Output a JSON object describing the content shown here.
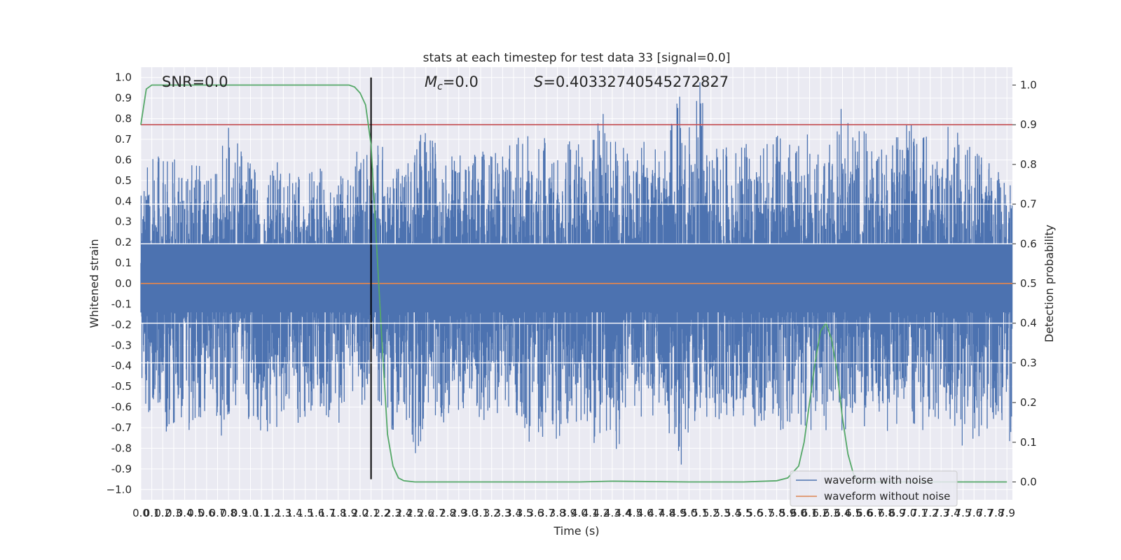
{
  "chart_data": {
    "type": "line",
    "title": "stats at each timestep for test data 33 [signal=0.0]",
    "xlabel": "Time (s)",
    "ylabel": "Whitened strain",
    "y2label": "Detection probability",
    "xlim": [
      0.0,
      7.95
    ],
    "ylim": [
      -1.05,
      1.05
    ],
    "y2lim": [
      -0.045,
      1.045
    ],
    "x_ticks": [
      0.0,
      0.1,
      0.2,
      0.3,
      0.4,
      0.5,
      0.6,
      0.7,
      0.8,
      0.9,
      1.0,
      1.1,
      1.2,
      1.3,
      1.4,
      1.5,
      1.6,
      1.7,
      1.8,
      1.9,
      2.0,
      2.1,
      2.2,
      2.3,
      2.4,
      2.5,
      2.6,
      2.7,
      2.8,
      2.9,
      3.0,
      3.1,
      3.2,
      3.3,
      3.4,
      3.5,
      3.6,
      3.7,
      3.8,
      3.9,
      4.0,
      4.1,
      4.2,
      4.3,
      4.4,
      4.5,
      4.6,
      4.7,
      4.8,
      4.9,
      5.0,
      5.1,
      5.2,
      5.3,
      5.4,
      5.5,
      5.6,
      5.7,
      5.8,
      5.9,
      6.0,
      6.1,
      6.2,
      6.3,
      6.4,
      6.5,
      6.6,
      6.7,
      6.8,
      6.9,
      7.0,
      7.1,
      7.2,
      7.3,
      7.4,
      7.5,
      7.6,
      7.7,
      7.8,
      7.9
    ],
    "y_ticks": [
      1.0,
      0.9,
      0.8,
      0.7,
      0.6,
      0.5,
      0.4,
      0.3,
      0.2,
      0.1,
      0.0,
      -0.1,
      -0.2,
      -0.3,
      -0.4,
      -0.5,
      -0.6,
      -0.7,
      -0.8,
      -0.9,
      -1.0
    ],
    "y_tick_labels": [
      "1.0",
      "0.9",
      "0.8",
      "0.7",
      "0.6",
      "0.5",
      "0.4",
      "0.3",
      "0.2",
      "0.1",
      "0.0",
      "-0.1",
      "-0.2",
      "-0.3",
      "-0.4",
      "-0.5",
      "-0.6",
      "-0.7",
      "-0.8",
      "-0.9",
      "−1.0"
    ],
    "y2_ticks": [
      0.0,
      0.1,
      0.2,
      0.3,
      0.4,
      0.5,
      0.6,
      0.7,
      0.8,
      0.9,
      1.0
    ],
    "y2_grid": [
      0.3,
      0.4,
      0.6,
      0.7
    ],
    "annotations": {
      "snr": "SNR=0.0",
      "mc_symbol": "M",
      "mc_sub": "c",
      "mc_value": "=0.0",
      "s_symbol": "S",
      "s_value": "=0.40332740545272827"
    },
    "threshold": {
      "value": 0.9,
      "axis": "y2"
    },
    "marker_time": 2.1,
    "series": [
      {
        "name": "waveform with noise",
        "color": "#4c72b0",
        "axis": "y",
        "profile_time": [
          0.0,
          0.1,
          0.2,
          0.3,
          0.4,
          0.5,
          0.6,
          0.7,
          0.8,
          0.9,
          1.0,
          1.1,
          1.2,
          1.3,
          1.4,
          1.5,
          1.6,
          1.7,
          1.8,
          1.9,
          2.0,
          2.1,
          2.2,
          2.3,
          2.4,
          2.5,
          2.6,
          2.7,
          2.8,
          2.9,
          3.0,
          3.1,
          3.2,
          3.3,
          3.4,
          3.5,
          3.6,
          3.7,
          3.8,
          3.9,
          4.0,
          4.1,
          4.2,
          4.3,
          4.4,
          4.5,
          4.6,
          4.7,
          4.8,
          4.9,
          5.0,
          5.1,
          5.2,
          5.3,
          5.4,
          5.5,
          5.6,
          5.7,
          5.8,
          5.9,
          6.0,
          6.1,
          6.2,
          6.3,
          6.4,
          6.5,
          6.6,
          6.7,
          6.8,
          6.9,
          7.0,
          7.1,
          7.2,
          7.3,
          7.4,
          7.5,
          7.6,
          7.7,
          7.8,
          7.9
        ],
        "upper": [
          0.48,
          0.62,
          0.68,
          0.65,
          0.5,
          0.68,
          0.52,
          0.55,
          0.9,
          0.65,
          0.74,
          0.3,
          0.6,
          0.58,
          0.52,
          0.6,
          0.58,
          0.52,
          0.56,
          0.55,
          0.68,
          0.62,
          0.7,
          0.55,
          0.62,
          0.65,
          0.8,
          0.68,
          0.72,
          0.62,
          0.7,
          0.66,
          0.62,
          0.68,
          0.7,
          0.78,
          0.64,
          0.72,
          0.62,
          0.7,
          0.68,
          0.66,
          0.92,
          0.65,
          0.82,
          0.6,
          0.7,
          0.65,
          0.7,
          0.99,
          0.76,
          0.99,
          0.62,
          0.72,
          0.65,
          0.7,
          0.6,
          0.72,
          0.88,
          0.66,
          0.92,
          0.68,
          0.62,
          0.8,
          0.86,
          0.72,
          0.8,
          0.65,
          0.7,
          0.72,
          0.83,
          0.7,
          0.78,
          0.7,
          0.82,
          0.66,
          0.7,
          0.66,
          0.62,
          0.5
        ],
        "lower": [
          -0.64,
          -0.62,
          -0.74,
          -0.7,
          -0.74,
          -0.72,
          -0.66,
          -0.72,
          -0.78,
          -0.58,
          -0.68,
          -0.72,
          -0.78,
          -0.62,
          -0.72,
          -0.66,
          -0.62,
          -0.66,
          -0.7,
          -0.54,
          -0.68,
          -0.56,
          -0.6,
          -0.72,
          -0.66,
          -0.84,
          -0.7,
          -0.66,
          -0.7,
          -0.62,
          -0.66,
          -0.7,
          -0.62,
          -0.7,
          -0.66,
          -0.72,
          -0.84,
          -0.72,
          -0.8,
          -0.72,
          -0.68,
          -0.75,
          -0.86,
          -0.93,
          -0.7,
          -0.66,
          -0.7,
          -0.62,
          -0.68,
          -0.95,
          -0.72,
          -0.7,
          -0.66,
          -0.68,
          -0.72,
          -0.66,
          -0.7,
          -0.72,
          -0.76,
          -0.68,
          -0.7,
          -0.72,
          -0.66,
          -0.8,
          -0.72,
          -0.68,
          -0.7,
          -0.62,
          -0.74,
          -0.7,
          -0.66,
          -0.72,
          -0.7,
          -0.66,
          -0.7,
          -0.8,
          -0.76,
          -0.82,
          -0.66,
          -0.79
        ]
      },
      {
        "name": "waveform without noise",
        "color": "#dd8452",
        "axis": "y",
        "x": [
          0.0,
          7.95
        ],
        "y": [
          0.0,
          0.0
        ]
      },
      {
        "name": "",
        "color": "#55a868",
        "axis": "y2",
        "x": [
          0.0,
          0.05,
          0.1,
          0.2,
          0.5,
          1.0,
          1.5,
          1.8,
          1.9,
          1.95,
          2.0,
          2.05,
          2.1,
          2.15,
          2.2,
          2.25,
          2.3,
          2.35,
          2.4,
          2.5,
          2.6,
          3.0,
          4.0,
          4.3,
          5.0,
          5.5,
          5.8,
          5.9,
          6.0,
          6.05,
          6.1,
          6.15,
          6.2,
          6.25,
          6.3,
          6.35,
          6.4,
          6.45,
          6.5,
          6.55,
          6.6,
          6.65,
          6.7,
          6.8,
          7.0,
          7.5,
          7.9
        ],
        "y": [
          0.9,
          0.99,
          1.0,
          1.0,
          1.0,
          1.0,
          1.0,
          1.0,
          1.0,
          0.995,
          0.98,
          0.95,
          0.85,
          0.6,
          0.35,
          0.12,
          0.04,
          0.01,
          0.003,
          0.0,
          0.0,
          0.0,
          0.0,
          0.002,
          0.0,
          0.0,
          0.003,
          0.01,
          0.04,
          0.1,
          0.2,
          0.3,
          0.38,
          0.4,
          0.36,
          0.28,
          0.16,
          0.07,
          0.02,
          0.0,
          0.0,
          0.0,
          0.0,
          0.0,
          0.0,
          0.0,
          0.0
        ]
      }
    ],
    "legend": {
      "placement": "lower-right",
      "entries": [
        "waveform with noise",
        "waveform without noise"
      ]
    }
  }
}
